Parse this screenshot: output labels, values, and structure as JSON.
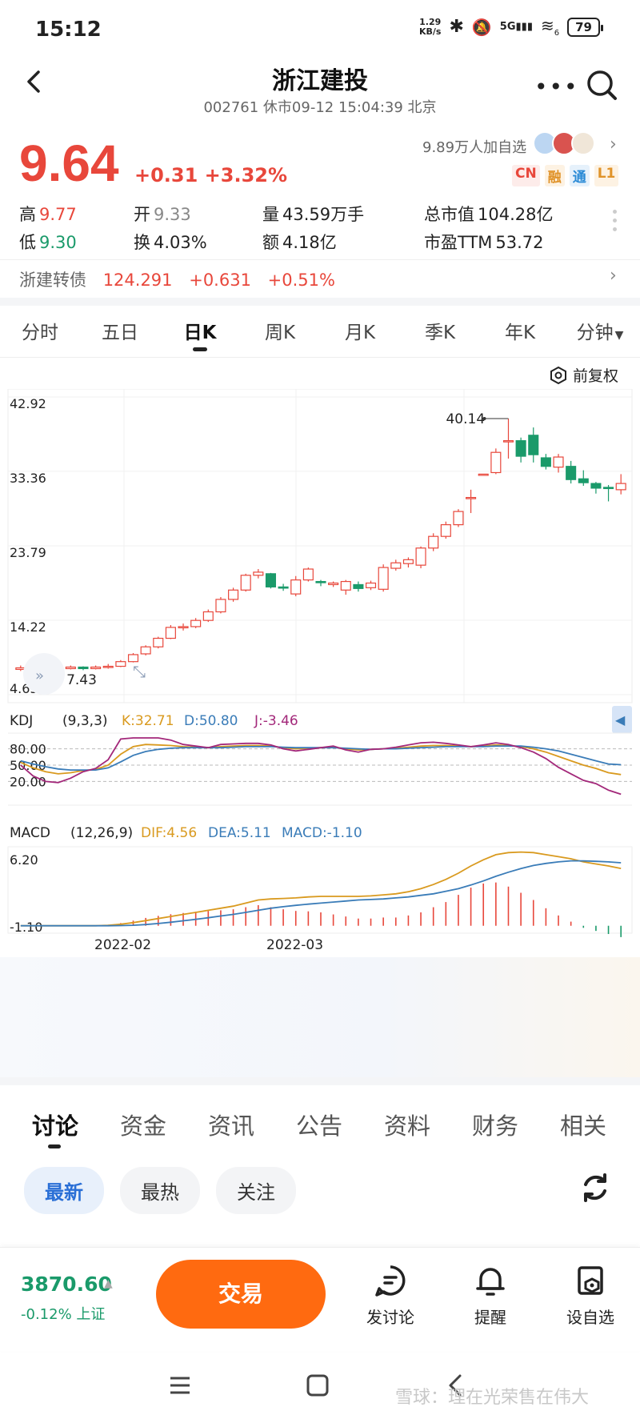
{
  "status_bar": {
    "time": "15:12",
    "net_speed_value": "1.29",
    "net_speed_unit": "KB/s",
    "network": "5G",
    "wifi_num": "6",
    "battery": "79"
  },
  "header": {
    "title": "浙江建投",
    "subtitle": "002761 休市09-12 15:04:39 北京"
  },
  "quote": {
    "price": "9.64",
    "change": "+0.31 +3.32%",
    "watchers": "9.89万人加自选",
    "badges": [
      "CN",
      "融",
      "通",
      "L1"
    ],
    "stats": {
      "high_label": "高",
      "high": "9.77",
      "open_label": "开",
      "open": "9.33",
      "volume_label": "量",
      "volume": "43.59万手",
      "mcap_label": "总市值",
      "mcap": "104.28亿",
      "low_label": "低",
      "low": "9.30",
      "turnover_label": "换",
      "turnover": "4.03%",
      "amount_label": "额",
      "amount": "4.18亿",
      "pe_label": "市盈TTM",
      "pe": "53.72"
    },
    "bond": {
      "name": "浙建转债",
      "price": "124.291",
      "change": "+0.631",
      "pct": "+0.51%"
    }
  },
  "period_tabs": [
    "分时",
    "五日",
    "日K",
    "周K",
    "月K",
    "季K",
    "年K",
    "分钟"
  ],
  "period_active": "日K",
  "fq_label": "前复权",
  "chart_data": {
    "type": "candlestick",
    "y_ticks": [
      "42.92",
      "33.36",
      "23.79",
      "14.22",
      "4.65"
    ],
    "y_range": [
      4.65,
      42.92
    ],
    "max_label": "40.14",
    "min_label": "7.43",
    "x_ticks": [
      "2022-02",
      "2022-03"
    ],
    "candles": [
      [
        7.9,
        8.1,
        8.4,
        7.7
      ],
      [
        8.0,
        7.9,
        8.2,
        7.6
      ],
      [
        7.9,
        7.8,
        8.0,
        7.43
      ],
      [
        7.8,
        8.0,
        8.2,
        7.6
      ],
      [
        8.0,
        8.2,
        8.4,
        7.9
      ],
      [
        8.2,
        8.0,
        8.3,
        7.8
      ],
      [
        8.0,
        8.2,
        8.4,
        7.9
      ],
      [
        8.2,
        8.3,
        8.6,
        8.0
      ],
      [
        8.3,
        8.9,
        9.1,
        8.2
      ],
      [
        8.9,
        9.8,
        10.0,
        8.8
      ],
      [
        9.9,
        10.8,
        11.0,
        9.7
      ],
      [
        10.8,
        11.9,
        12.1,
        10.6
      ],
      [
        11.9,
        13.3,
        13.6,
        11.8
      ],
      [
        13.3,
        13.4,
        13.8,
        12.9
      ],
      [
        13.4,
        14.2,
        14.5,
        13.2
      ],
      [
        14.2,
        15.3,
        15.6,
        14.0
      ],
      [
        15.3,
        16.9,
        17.2,
        15.1
      ],
      [
        16.9,
        18.1,
        18.4,
        16.6
      ],
      [
        18.1,
        20.0,
        20.2,
        17.9
      ],
      [
        20.0,
        20.4,
        20.8,
        19.6
      ],
      [
        20.2,
        18.5,
        20.3,
        18.3
      ],
      [
        18.5,
        18.4,
        18.9,
        18.0
      ],
      [
        17.6,
        19.4,
        19.9,
        17.3
      ],
      [
        19.4,
        20.8,
        21.0,
        19.2
      ],
      [
        19.2,
        19.1,
        19.4,
        18.6
      ],
      [
        18.8,
        19.0,
        19.2,
        18.5
      ],
      [
        18.1,
        19.2,
        19.4,
        17.5
      ],
      [
        18.8,
        18.3,
        19.2,
        17.9
      ],
      [
        18.4,
        19.0,
        19.3,
        18.1
      ],
      [
        18.2,
        21.0,
        21.4,
        17.9
      ],
      [
        20.9,
        21.6,
        22.0,
        20.6
      ],
      [
        21.5,
        22.0,
        22.3,
        21.0
      ],
      [
        21.3,
        23.5,
        23.7,
        20.9
      ],
      [
        23.5,
        25.0,
        25.4,
        23.1
      ],
      [
        25.0,
        26.5,
        26.9,
        24.7
      ],
      [
        26.5,
        28.2,
        28.5,
        26.2
      ],
      [
        30.0,
        30.0,
        31.0,
        28.0
      ],
      [
        33.0,
        33.0,
        33.0,
        33.0
      ],
      [
        33.2,
        35.8,
        36.3,
        33.0
      ],
      [
        37.3,
        37.3,
        40.14,
        35.0
      ],
      [
        37.3,
        35.3,
        37.7,
        34.5
      ],
      [
        38.0,
        35.5,
        39.0,
        34.5
      ],
      [
        35.1,
        34.0,
        35.6,
        33.6
      ],
      [
        33.9,
        35.2,
        35.6,
        33.2
      ],
      [
        34.0,
        32.3,
        34.7,
        31.8
      ],
      [
        32.4,
        31.9,
        33.5,
        31.5
      ],
      [
        31.8,
        31.2,
        32.0,
        30.5
      ],
      [
        31.3,
        31.2,
        31.6,
        29.5
      ],
      [
        31.0,
        31.8,
        33.0,
        30.4
      ]
    ],
    "kdj": {
      "label": "KDJ",
      "params": "(9,3,3)",
      "k_label": "K:32.71",
      "d_label": "D:50.80",
      "j_label": "J:-3.46",
      "y_ticks": [
        "80.00",
        "50.00",
        "20.00"
      ],
      "colors": {
        "K": "#d99a1f",
        "D": "#3a7cb8",
        "J": "#a3287a"
      }
    },
    "macd": {
      "label": "MACD",
      "params": "(12,26,9)",
      "dif_label": "DIF:4.56",
      "dea_label": "DEA:5.11",
      "macd_label": "MACD:-1.10",
      "y_ticks": [
        "6.20",
        "-1.10"
      ],
      "colors": {
        "DIF": "#d99a1f",
        "DEA": "#3a7cb8"
      }
    }
  },
  "bottom_tabs": [
    "讨论",
    "资金",
    "资讯",
    "公告",
    "资料",
    "财务",
    "相关"
  ],
  "filters": [
    "最新",
    "最热",
    "关注"
  ],
  "action_bar": {
    "index_value": "3870.60",
    "index_change": "-0.12% 上证",
    "trade": "交易",
    "discuss": "发讨论",
    "alert": "提醒",
    "watchlist": "设自选"
  },
  "watermark": "雪球：理在光荣售在伟大",
  "colors": {
    "up": "#e8473b",
    "down": "#1a9a6a",
    "accent": "#ff6a10"
  }
}
